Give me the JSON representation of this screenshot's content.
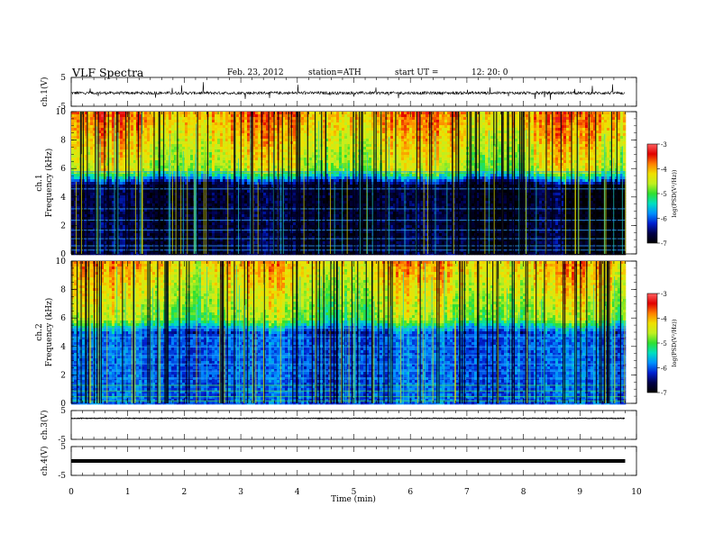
{
  "header": {
    "title": "VLF  Spectra",
    "date": "Feb. 23, 2012",
    "station": "station=ATH",
    "start_label": "start  UT  =",
    "start_time": "12: 20: 0"
  },
  "xaxis": {
    "label": "Time  (min)",
    "range": [
      0,
      10
    ],
    "ticks": [
      "0",
      "1",
      "2",
      "3",
      "4",
      "5",
      "6",
      "7",
      "8",
      "9",
      "10"
    ]
  },
  "colorbar": {
    "label": "log(PSD(V²/Hz))",
    "range": [
      -7,
      -3
    ],
    "ticks": [
      "-3",
      "-4",
      "-5",
      "-6",
      "-7"
    ],
    "colors": [
      "#000000",
      "#00004a",
      "#0020d0",
      "#0090ff",
      "#00e0c0",
      "#30e030",
      "#c0f020",
      "#f0e000",
      "#ff8000",
      "#e00000",
      "#ff6060"
    ]
  },
  "chart_data": [
    {
      "type": "line",
      "name": "ch1-waveform",
      "ylabel": "ch.1(V)",
      "ylim": [
        -5,
        5
      ],
      "yticks": [
        "5",
        "-5"
      ],
      "xlim": [
        0,
        10
      ],
      "data_end_min": 9.8,
      "baseline": -0.4,
      "noise_amp": 0.5,
      "spike_amp": 3
    },
    {
      "type": "heatmap",
      "name": "ch1-spectrogram",
      "ylabel": "ch.1\nFrequency  (kHz)",
      "ylim": [
        0,
        10
      ],
      "yticks": [
        "0",
        "2",
        "4",
        "6",
        "8",
        "10"
      ],
      "xlim": [
        0,
        10
      ],
      "data_end_min": 9.8,
      "zlim": [
        -7,
        -3
      ],
      "description_levels": {
        "0-5 kHz": -6.6,
        "6-10 kHz": -4.6
      }
    },
    {
      "type": "heatmap",
      "name": "ch2-spectrogram",
      "ylabel": "ch.2\nFrequency  (kHz)",
      "ylim": [
        0,
        10
      ],
      "yticks": [
        "0",
        "2",
        "4",
        "6",
        "8",
        "10"
      ],
      "xlim": [
        0,
        10
      ],
      "data_end_min": 9.8,
      "zlim": [
        -7,
        -3
      ],
      "description_levels": {
        "0-5 kHz": -6.2,
        "6-10 kHz": -4.8
      }
    },
    {
      "type": "line",
      "name": "ch3-waveform",
      "ylabel": "ch.3(V)",
      "ylim": [
        -5,
        5
      ],
      "yticks": [
        "5",
        "-5"
      ],
      "xlim": [
        0,
        10
      ],
      "data_end_min": 9.8,
      "baseline": 2.3
    },
    {
      "type": "line",
      "name": "ch4-waveform",
      "ylabel": "ch.4(V)",
      "ylim": [
        -5,
        5
      ],
      "yticks": [
        "5",
        "-5"
      ],
      "xlim": [
        0,
        10
      ],
      "data_end_min": 9.8,
      "baseline": 0
    }
  ]
}
